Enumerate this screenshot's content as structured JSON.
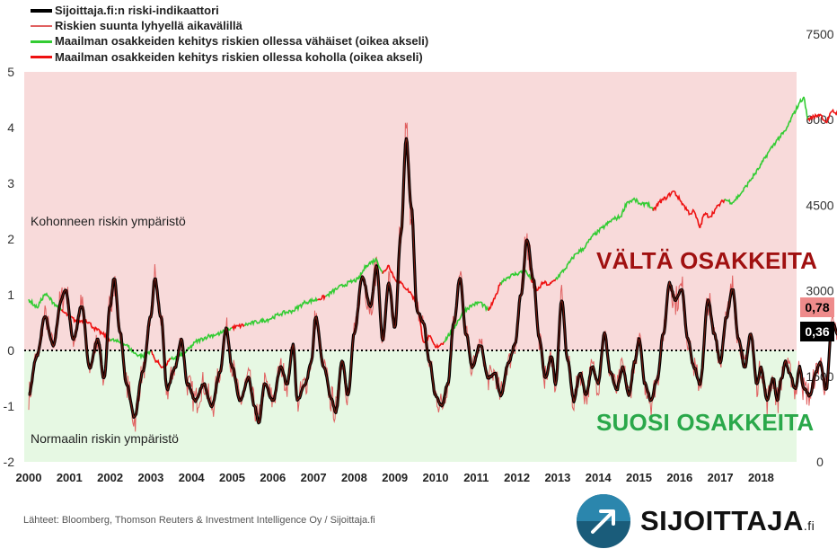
{
  "legend": [
    {
      "label": "Sijoittaja.fi:n riski-indikaattori",
      "color": "#000000"
    },
    {
      "label": "Riskien suunta lyhyellä aikavälillä",
      "color": "#e06060"
    },
    {
      "label": "Maailman osakkeiden kehitys riskien ollessa vähäiset (oikea akseli)",
      "color": "#33cc33"
    },
    {
      "label": "Maailman osakkeiden kehitys riskien ollessa koholla (oikea akseli)",
      "color": "#ee1111"
    }
  ],
  "zones": {
    "elevated_label": "Kohonneen riskin ympäristö",
    "normal_label": "Normaalin riskin ympäristö",
    "avoid_label": "VÄLTÄ OSAKKEITA",
    "favor_label": "SUOSI OSAKKEITA"
  },
  "badges": {
    "short_term": "0,78",
    "indicator": "0,36"
  },
  "source": "Lähteet: Bloomberg, Thomson Reuters & Investment Intelligence Oy / Sijoittaja.fi",
  "logo": {
    "name": "SIJOITTAJA",
    "suffix": ".fi"
  },
  "colors": {
    "elevated_bg": "#f8dada",
    "normal_bg": "#e6f8e3",
    "avoid_text": "#a01010",
    "favor_text": "#2aa84a",
    "short_term_badge": "#ee8b8b",
    "indicator_badge": "#000000"
  },
  "chart_data": {
    "type": "line",
    "xlim": [
      2000,
      2018.9
    ],
    "x_ticks": [
      "2000",
      "2001",
      "2002",
      "2003",
      "2004",
      "2005",
      "2006",
      "2007",
      "2008",
      "2009",
      "2010",
      "2011",
      "2012",
      "2013",
      "2014",
      "2015",
      "2016",
      "2017",
      "2018"
    ],
    "y_left": {
      "lim": [
        -2,
        5
      ],
      "ticks": [
        "-2",
        "-1",
        "0",
        "1",
        "2",
        "3",
        "4",
        "5"
      ]
    },
    "y_right": {
      "lim": [
        0,
        7500
      ],
      "ticks": [
        "0",
        "1500",
        "3000",
        "4500",
        "6000",
        "7500"
      ]
    },
    "risk_indicator": {
      "name": "Sijoittaja.fi:n riski-indikaattori",
      "points": [
        [
          2000.0,
          -0.8
        ],
        [
          2000.2,
          -0.1
        ],
        [
          2000.4,
          0.6
        ],
        [
          2000.6,
          0.1
        ],
        [
          2000.8,
          0.9
        ],
        [
          2000.9,
          1.1
        ],
        [
          2001.1,
          0.2
        ],
        [
          2001.3,
          0.8
        ],
        [
          2001.5,
          -0.3
        ],
        [
          2001.7,
          0.2
        ],
        [
          2001.85,
          -0.5
        ],
        [
          2002.0,
          0.8
        ],
        [
          2002.1,
          1.3
        ],
        [
          2002.25,
          0.3
        ],
        [
          2002.4,
          -0.6
        ],
        [
          2002.6,
          -1.2
        ],
        [
          2002.8,
          -0.4
        ],
        [
          2003.0,
          0.6
        ],
        [
          2003.1,
          1.3
        ],
        [
          2003.25,
          0.6
        ],
        [
          2003.4,
          -0.7
        ],
        [
          2003.6,
          -0.3
        ],
        [
          2003.75,
          0.2
        ],
        [
          2003.9,
          -0.6
        ],
        [
          2004.1,
          -0.9
        ],
        [
          2004.3,
          -0.6
        ],
        [
          2004.5,
          -1.0
        ],
        [
          2004.7,
          -0.4
        ],
        [
          2004.85,
          0.4
        ],
        [
          2005.0,
          -0.3
        ],
        [
          2005.2,
          -0.9
        ],
        [
          2005.4,
          -0.5
        ],
        [
          2005.55,
          -1.0
        ],
        [
          2005.65,
          -1.3
        ],
        [
          2005.8,
          -0.6
        ],
        [
          2006.0,
          -0.9
        ],
        [
          2006.2,
          -0.3
        ],
        [
          2006.35,
          -0.6
        ],
        [
          2006.5,
          0.1
        ],
        [
          2006.6,
          -0.9
        ],
        [
          2006.8,
          -0.6
        ],
        [
          2006.95,
          -0.2
        ],
        [
          2007.05,
          0.6
        ],
        [
          2007.25,
          -0.3
        ],
        [
          2007.45,
          -0.9
        ],
        [
          2007.55,
          -1.1
        ],
        [
          2007.7,
          -0.2
        ],
        [
          2007.85,
          -0.8
        ],
        [
          2008.0,
          0.3
        ],
        [
          2008.2,
          1.3
        ],
        [
          2008.4,
          0.8
        ],
        [
          2008.55,
          1.5
        ],
        [
          2008.7,
          0.2
        ],
        [
          2008.85,
          1.2
        ],
        [
          2009.0,
          0.4
        ],
        [
          2009.15,
          2.1
        ],
        [
          2009.28,
          3.8
        ],
        [
          2009.4,
          2.6
        ],
        [
          2009.55,
          0.7
        ],
        [
          2009.7,
          0.5
        ],
        [
          2009.85,
          -0.2
        ],
        [
          2010.0,
          -0.8
        ],
        [
          2010.15,
          -1.0
        ],
        [
          2010.3,
          -0.6
        ],
        [
          2010.45,
          0.5
        ],
        [
          2010.6,
          1.3
        ],
        [
          2010.75,
          0.3
        ],
        [
          2010.9,
          -0.3
        ],
        [
          2011.1,
          0.1
        ],
        [
          2011.3,
          -0.5
        ],
        [
          2011.45,
          -0.4
        ],
        [
          2011.6,
          -0.8
        ],
        [
          2011.8,
          -0.2
        ],
        [
          2011.95,
          0.1
        ],
        [
          2012.1,
          1.0
        ],
        [
          2012.25,
          2.0
        ],
        [
          2012.4,
          1.3
        ],
        [
          2012.55,
          0.2
        ],
        [
          2012.7,
          -0.5
        ],
        [
          2012.85,
          -0.1
        ],
        [
          2012.95,
          -0.6
        ],
        [
          2013.1,
          0.9
        ],
        [
          2013.25,
          -0.2
        ],
        [
          2013.4,
          -0.9
        ],
        [
          2013.55,
          -0.4
        ],
        [
          2013.7,
          -0.8
        ],
        [
          2013.85,
          -0.3
        ],
        [
          2014.0,
          -0.6
        ],
        [
          2014.15,
          0.3
        ],
        [
          2014.3,
          -0.4
        ],
        [
          2014.45,
          -0.7
        ],
        [
          2014.6,
          -0.3
        ],
        [
          2014.75,
          -0.8
        ],
        [
          2014.9,
          -0.2
        ],
        [
          2015.0,
          0.2
        ],
        [
          2015.15,
          -0.6
        ],
        [
          2015.3,
          -0.9
        ],
        [
          2015.45,
          -0.5
        ],
        [
          2015.6,
          0.3
        ],
        [
          2015.75,
          1.2
        ],
        [
          2015.9,
          0.9
        ],
        [
          2016.05,
          1.1
        ],
        [
          2016.2,
          0.2
        ],
        [
          2016.35,
          -0.3
        ],
        [
          2016.5,
          -0.6
        ],
        [
          2016.7,
          0.9
        ],
        [
          2016.85,
          0.3
        ],
        [
          2017.0,
          -0.2
        ],
        [
          2017.15,
          0.6
        ],
        [
          2017.3,
          1.1
        ],
        [
          2017.45,
          0.2
        ],
        [
          2017.6,
          -0.3
        ],
        [
          2017.75,
          0.3
        ],
        [
          2017.9,
          -0.6
        ],
        [
          2018.0,
          -0.3
        ],
        [
          2018.15,
          -0.9
        ],
        [
          2018.3,
          -0.5
        ],
        [
          2018.4,
          -0.9
        ],
        [
          2018.5,
          -0.5
        ],
        [
          2018.6,
          -0.2
        ],
        [
          2018.7,
          -0.4
        ],
        [
          2018.85,
          -0.7
        ],
        [
          2018.95,
          -0.3
        ],
        [
          2019.05,
          -0.7
        ],
        [
          2019.2,
          -0.8
        ],
        [
          2019.35,
          -0.4
        ],
        [
          2019.45,
          -0.2
        ],
        [
          2019.6,
          -0.7
        ],
        [
          2019.75,
          0.5
        ],
        [
          2019.9,
          0.3
        ],
        [
          2020.05,
          0.1
        ],
        [
          2020.2,
          0.3
        ],
        [
          2020.3,
          0.1
        ],
        [
          2020.35,
          0.36
        ]
      ]
    },
    "short_term_direction": {
      "name": "Riskien suunta lyhyellä aikavälillä",
      "noise": 0.18,
      "end_value": 0.78
    },
    "world_equities": {
      "axis": "right",
      "points": [
        [
          2000.0,
          2850,
          "low"
        ],
        [
          2000.2,
          2700,
          "low"
        ],
        [
          2000.4,
          2950,
          "low"
        ],
        [
          2000.6,
          2800,
          "low"
        ],
        [
          2000.8,
          2650,
          "high"
        ],
        [
          2001.0,
          2550,
          "high"
        ],
        [
          2001.2,
          2450,
          "high"
        ],
        [
          2001.4,
          2500,
          "high"
        ],
        [
          2001.6,
          2350,
          "high"
        ],
        [
          2001.8,
          2250,
          "high"
        ],
        [
          2002.0,
          2150,
          "low"
        ],
        [
          2002.2,
          2100,
          "low"
        ],
        [
          2002.4,
          2050,
          "low"
        ],
        [
          2002.6,
          1900,
          "low"
        ],
        [
          2002.8,
          1850,
          "low"
        ],
        [
          2003.0,
          1950,
          "high"
        ],
        [
          2003.1,
          1800,
          "high"
        ],
        [
          2003.3,
          1650,
          "high"
        ],
        [
          2003.5,
          1800,
          "low"
        ],
        [
          2003.7,
          1850,
          "low"
        ],
        [
          2003.9,
          1950,
          "low"
        ],
        [
          2004.1,
          2100,
          "low"
        ],
        [
          2004.4,
          2200,
          "low"
        ],
        [
          2004.7,
          2250,
          "low"
        ],
        [
          2005.0,
          2350,
          "high"
        ],
        [
          2005.3,
          2400,
          "low"
        ],
        [
          2005.6,
          2450,
          "low"
        ],
        [
          2005.9,
          2500,
          "low"
        ],
        [
          2006.2,
          2600,
          "low"
        ],
        [
          2006.5,
          2650,
          "low"
        ],
        [
          2006.8,
          2800,
          "low"
        ],
        [
          2007.1,
          2850,
          "high"
        ],
        [
          2007.3,
          2900,
          "low"
        ],
        [
          2007.6,
          3050,
          "low"
        ],
        [
          2007.9,
          3150,
          "low"
        ],
        [
          2008.1,
          3200,
          "low"
        ],
        [
          2008.3,
          3450,
          "low"
        ],
        [
          2008.55,
          3550,
          "low"
        ],
        [
          2008.7,
          3300,
          "high"
        ],
        [
          2008.85,
          3450,
          "high"
        ],
        [
          2009.0,
          3200,
          "high"
        ],
        [
          2009.2,
          3100,
          "high"
        ],
        [
          2009.4,
          2950,
          "high"
        ],
        [
          2009.55,
          2750,
          "high"
        ],
        [
          2009.7,
          2100,
          "high"
        ],
        [
          2009.85,
          2200,
          "high"
        ],
        [
          2010.0,
          2000,
          "high"
        ],
        [
          2010.2,
          2100,
          "low"
        ],
        [
          2010.45,
          2350,
          "low"
        ],
        [
          2010.7,
          2650,
          "low"
        ],
        [
          2010.9,
          2750,
          "low"
        ],
        [
          2011.1,
          2800,
          "low"
        ],
        [
          2011.3,
          2650,
          "high"
        ],
        [
          2011.45,
          2850,
          "high"
        ],
        [
          2011.6,
          3150,
          "low"
        ],
        [
          2011.8,
          3250,
          "low"
        ],
        [
          2012.0,
          3300,
          "low"
        ],
        [
          2012.2,
          3350,
          "low"
        ],
        [
          2012.35,
          3200,
          "high"
        ],
        [
          2012.5,
          3000,
          "high"
        ],
        [
          2012.65,
          3150,
          "high"
        ],
        [
          2012.8,
          3100,
          "high"
        ],
        [
          2012.95,
          3200,
          "low"
        ],
        [
          2013.2,
          3400,
          "low"
        ],
        [
          2013.45,
          3650,
          "low"
        ],
        [
          2013.65,
          3750,
          "low"
        ],
        [
          2013.85,
          3950,
          "low"
        ],
        [
          2014.1,
          4100,
          "low"
        ],
        [
          2014.35,
          4250,
          "low"
        ],
        [
          2014.55,
          4300,
          "low"
        ],
        [
          2014.7,
          4550,
          "low"
        ],
        [
          2014.9,
          4600,
          "low"
        ],
        [
          2015.05,
          4500,
          "low"
        ],
        [
          2015.2,
          4550,
          "low"
        ],
        [
          2015.35,
          4400,
          "high"
        ],
        [
          2015.5,
          4550,
          "high"
        ],
        [
          2015.7,
          4650,
          "high"
        ],
        [
          2015.85,
          4750,
          "high"
        ],
        [
          2016.0,
          4600,
          "high"
        ],
        [
          2016.1,
          4500,
          "high"
        ],
        [
          2016.25,
          4350,
          "high"
        ],
        [
          2016.35,
          4400,
          "high"
        ],
        [
          2016.5,
          4100,
          "high"
        ],
        [
          2016.6,
          4350,
          "high"
        ],
        [
          2016.75,
          4300,
          "high"
        ],
        [
          2016.9,
          4450,
          "high"
        ],
        [
          2017.1,
          4600,
          "low"
        ],
        [
          2017.3,
          4550,
          "low"
        ],
        [
          2017.5,
          4700,
          "low"
        ],
        [
          2017.7,
          4900,
          "low"
        ],
        [
          2017.95,
          5150,
          "low"
        ],
        [
          2018.2,
          5450,
          "low"
        ],
        [
          2018.4,
          5650,
          "low"
        ],
        [
          2018.6,
          5800,
          "low"
        ],
        [
          2018.8,
          6100,
          "low"
        ],
        [
          2018.95,
          6300,
          "low"
        ],
        [
          2019.05,
          6400,
          "low"
        ],
        [
          2019.15,
          6000,
          "high"
        ],
        [
          2019.3,
          6050,
          "high"
        ],
        [
          2019.45,
          6100,
          "high"
        ],
        [
          2019.6,
          5950,
          "high"
        ],
        [
          2019.75,
          6150,
          "high"
        ],
        [
          2019.9,
          6100,
          "high"
        ],
        [
          2020.05,
          6250,
          "high"
        ],
        [
          2020.2,
          6150,
          "high"
        ],
        [
          2020.3,
          6100,
          "high"
        ],
        [
          2020.35,
          5650,
          "high"
        ]
      ]
    }
  }
}
